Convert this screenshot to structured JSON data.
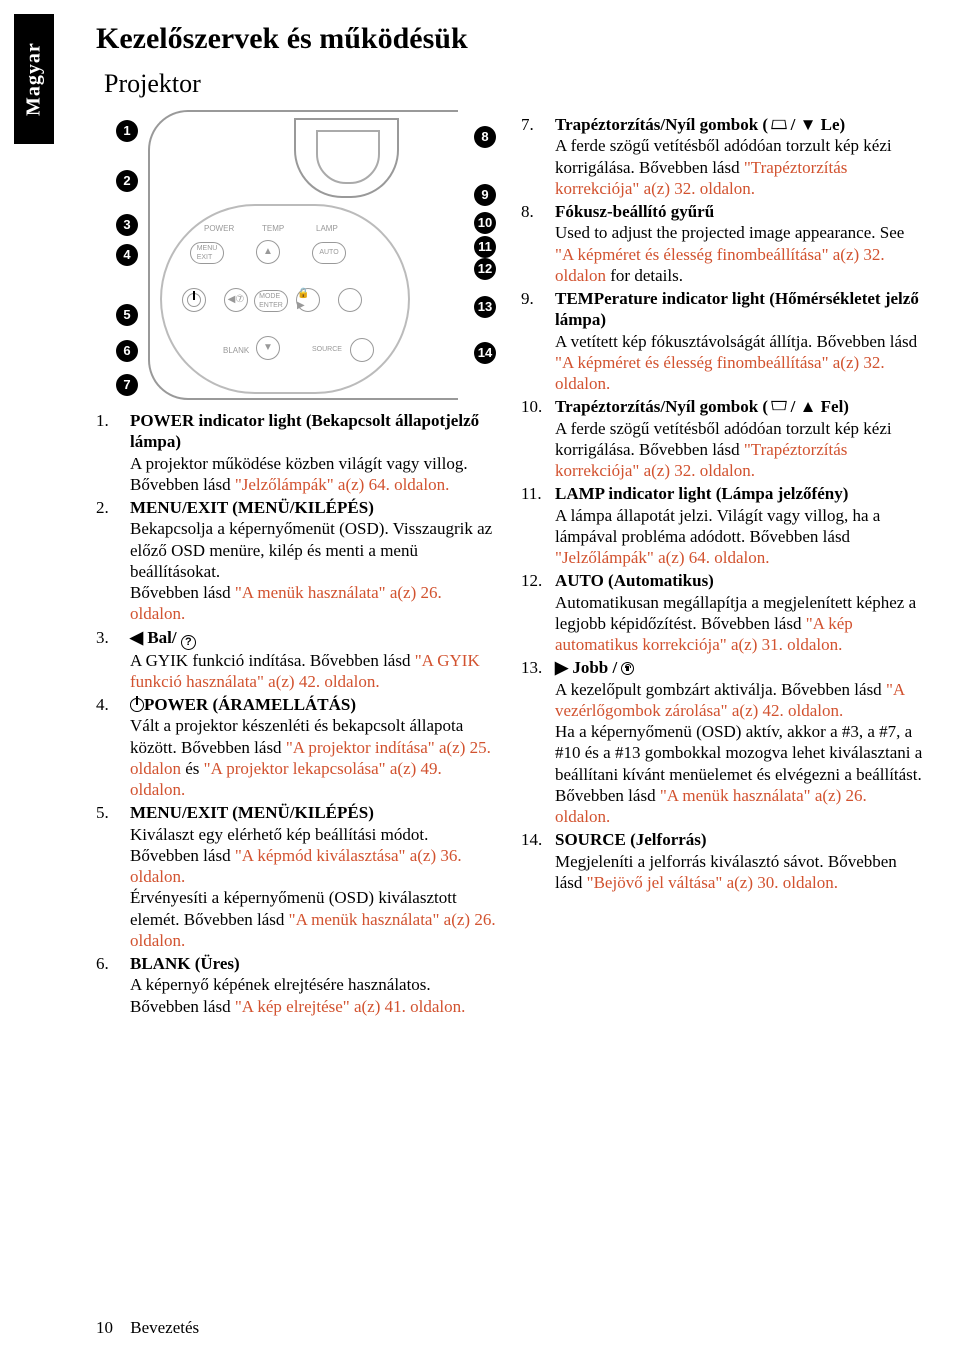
{
  "side_tab": "Magyar",
  "title_main": "Kezelőszervek és működésük",
  "title_sub": "Projektor",
  "diagram": {
    "labels": {
      "power": "POWER",
      "temp": "TEMP",
      "lamp": "LAMP",
      "menu_exit": "MENU\nEXIT",
      "auto": "AUTO",
      "mode_enter": "MODE\nENTER",
      "blank": "BLANK",
      "source": "SOURCE"
    }
  },
  "left_items": [
    {
      "n": "1.",
      "head": "POWER indicator light (Bekapcsolt állapotjelző lámpa)",
      "body": "A projektor működése közben világít vagy villog. Bővebben lásd ",
      "link": "\"Jelzőlámpák\" a(z) 64. oldalon."
    },
    {
      "n": "2.",
      "head": "MENU/EXIT (MENÜ/KILÉPÉS)",
      "body": "Bekapcsolja a képernyőmenüt (OSD). Visszaugrik az előző OSD menüre, kilép és menti a menü beállításokat.\nBővebben lásd ",
      "link": "\"A menük használata\" a(z) 26. oldalon."
    },
    {
      "n": "3.",
      "head_pre_sym": "left_q",
      "head": " Bal/ ",
      "body": "A GYIK funkció indítása. Bővebben lásd ",
      "link": "\"A GYIK funkció használata\" a(z) 42. oldalon."
    },
    {
      "n": "4.",
      "head_pre_sym": "power",
      "head": "POWER (ÁRAMELLÁTÁS)",
      "body": "Vált a projektor készenléti és bekapcsolt állapota között. Bővebben lásd ",
      "link": "\"A projektor indítása\" a(z) 25. oldalon",
      "body2": " és ",
      "link2": "\"A projektor lekapcsolása\" a(z) 49. oldalon."
    },
    {
      "n": "5.",
      "head": "MENU/EXIT (MENÜ/KILÉPÉS)",
      "body": "Kiválaszt egy elérhető kép beállítási módot. Bővebben lásd ",
      "link": "\"A képmód kiválasztása\" a(z) 36. oldalon.",
      "body2": "\nÉrvényesíti a képernyőmenü (OSD) kiválasztott elemét. Bővebben lásd ",
      "link2": "\"A menük használata\" a(z) 26. oldalon."
    },
    {
      "n": "6.",
      "head": "BLANK (Üres)",
      "body": "A képernyő képének elrejtésére használatos. Bővebben lásd ",
      "link": "\"A kép elrejtése\" a(z) 41. oldalon."
    }
  ],
  "right_items": [
    {
      "n": "7.",
      "head": "Trapéztorzítás/Nyíl gombok ( ",
      "head_sym": "trap_down",
      "head_post": " / ▼ Le)",
      "body": "A ferde szögű vetítésből adódóan torzult kép kézi korrigálása. Bővebben lásd ",
      "link": "\"Trapéztorzítás korrekciója\" a(z) 32. oldalon."
    },
    {
      "n": "8.",
      "head": "Fókusz-beállító gyűrű",
      "body": "Used to adjust the projected image appearance. See ",
      "link": "\"A képméret és élesség finombeállítása\" a(z) 32. oldalon",
      "body2": " for details."
    },
    {
      "n": "9.",
      "head": "TEMPerature indicator light (Hőmérsékletet jelző lámpa)",
      "body": "A vetített kép fókusztávolságát állítja. Bővebben lásd ",
      "link": "\"A képméret és élesség finombeállítása\" a(z) 32. oldalon."
    },
    {
      "n": "10.",
      "head": "Trapéztorzítás/Nyíl gombok ( ",
      "head_sym": "trap_up",
      "head_post": " / ▲ Fel)",
      "body": "A ferde szögű vetítésből adódóan torzult kép kézi korrigálása. Bővebben lásd ",
      "link": "\"Trapéztorzítás korrekciója\" a(z) 32. oldalon."
    },
    {
      "n": "11.",
      "head": "LAMP indicator light (Lámpa jelzőfény)",
      "body": "A lámpa állapotát jelzi. Világít vagy villog, ha a lámpával probléma adódott. Bővebben lásd ",
      "link": "\"Jelzőlámpák\" a(z) 64. oldalon."
    },
    {
      "n": "12.",
      "head": "AUTO (Automatikus)",
      "body": "Automatikusan megállapítja a megjelenített képhez a legjobb képidőzítést. Bővebben lásd ",
      "link": "\"A kép automatikus korrekciója\" a(z) 31. oldalon."
    },
    {
      "n": "13.",
      "head": "▶ Jobb / ",
      "head_sym": "lock",
      "body": "A kezelőpult gombzárt aktiválja. Bővebben lásd ",
      "link": "\"A vezérlőgombok zárolása\" a(z) 42. oldalon.",
      "body2": "\nHa a képernyőmenü (OSD) aktív, akkor a #3, a #7, a #10 és a #13 gombokkal mozogva lehet kiválasztani a beállítani kívánt menüelemet és elvégezni a beállítást. Bővebben lásd ",
      "link2": "\"A menük használata\" a(z) 26. oldalon."
    },
    {
      "n": "14.",
      "head": "SOURCE (Jelforrás)",
      "body": "Megjeleníti a jelforrás kiválasztó sávot. Bővebben lásd ",
      "link": "\"Bejövő jel váltása\" a(z) 30. oldalon."
    }
  ],
  "footer": {
    "page_num": "10",
    "section": "Bevezetés"
  }
}
